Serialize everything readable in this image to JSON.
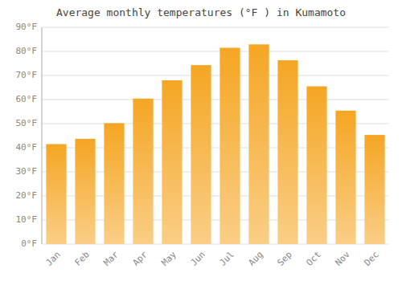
{
  "chart_data": {
    "type": "bar",
    "title": "Average monthly temperatures (°F ) in Kumamoto",
    "categories": [
      "Jan",
      "Feb",
      "Mar",
      "Apr",
      "May",
      "Jun",
      "Jul",
      "Aug",
      "Sep",
      "Oct",
      "Nov",
      "Dec"
    ],
    "values": [
      41.5,
      43.7,
      50.2,
      60.4,
      68.0,
      74.3,
      81.5,
      82.9,
      76.3,
      65.5,
      55.4,
      45.3
    ],
    "color": "#F5A623",
    "ylim": [
      0,
      90
    ],
    "yticks": [
      {
        "value": 0,
        "label": "0°F"
      },
      {
        "value": 10,
        "label": "10°F"
      },
      {
        "value": 20,
        "label": "20°F"
      },
      {
        "value": 30,
        "label": "30°F"
      },
      {
        "value": 40,
        "label": "40°F"
      },
      {
        "value": 50,
        "label": "50°F"
      },
      {
        "value": 60,
        "label": "60°F"
      },
      {
        "value": 70,
        "label": "70°F"
      },
      {
        "value": 80,
        "label": "80°F"
      },
      {
        "value": 90,
        "label": "90°F"
      }
    ],
    "grid": true
  }
}
